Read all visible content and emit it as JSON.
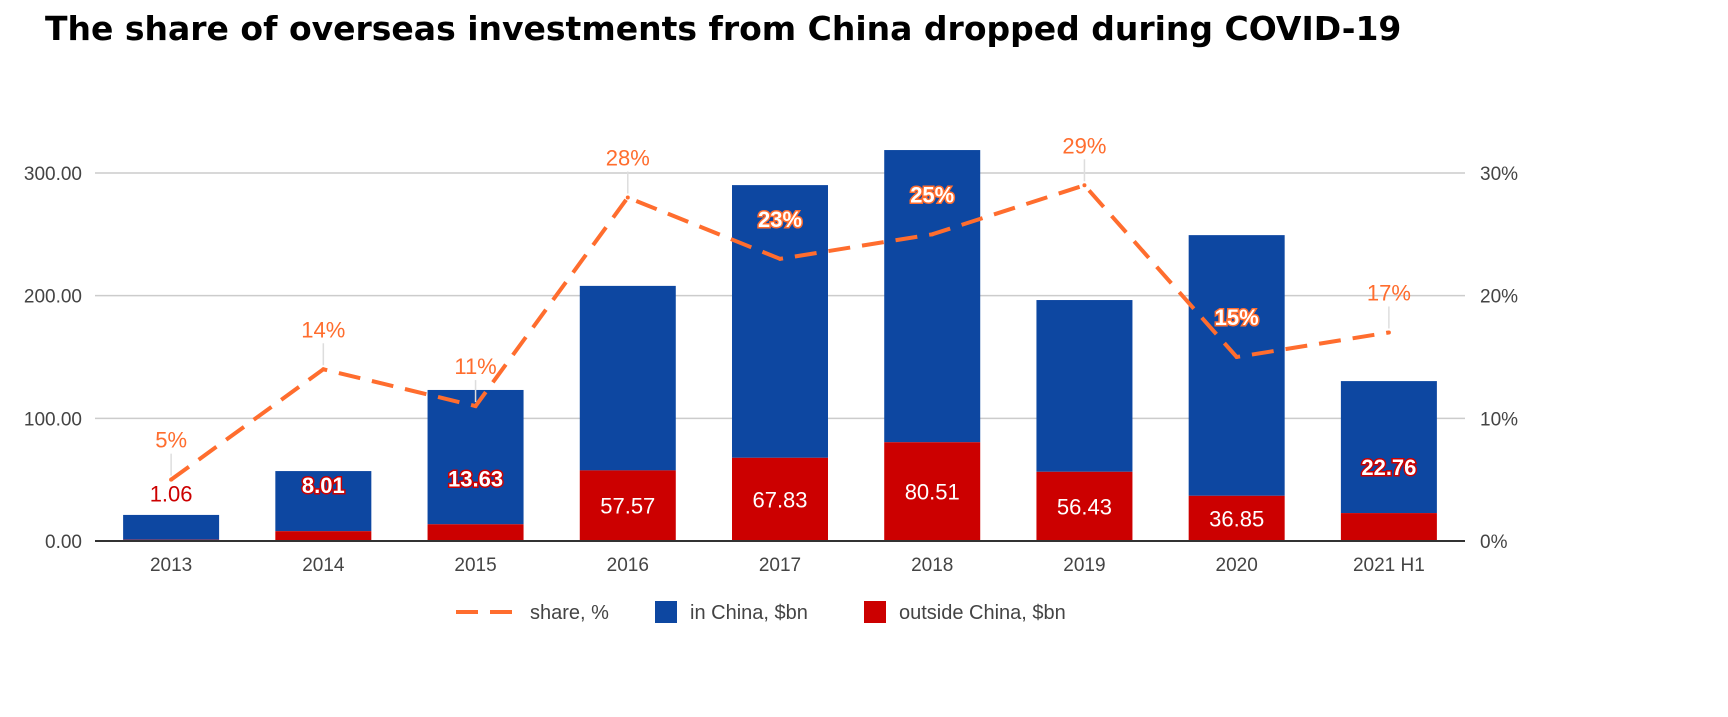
{
  "chart_data": {
    "type": "bar",
    "title": "The share of overseas investments from China dropped during COVID-19",
    "categories": [
      "2013",
      "2014",
      "2015",
      "2016",
      "2017",
      "2018",
      "2019",
      "2020",
      "2021 H1"
    ],
    "series": [
      {
        "name": "outside China, $bn",
        "kind": "bar",
        "axis": "left",
        "color": "#cc0000",
        "values": [
          1.06,
          8.01,
          13.63,
          57.57,
          67.83,
          80.51,
          56.43,
          36.85,
          22.76
        ],
        "labels": [
          "1.06",
          "8.01",
          "13.63",
          "57.57",
          "67.83",
          "80.51",
          "56.43",
          "36.85",
          "22.76"
        ]
      },
      {
        "name": "in China, $bn",
        "kind": "bar",
        "axis": "left",
        "color": "#0d47a1",
        "values": [
          20.2,
          49.0,
          109.5,
          150.4,
          222.3,
          238.2,
          140.0,
          212.5,
          107.6
        ]
      },
      {
        "name": "share, %",
        "kind": "line",
        "style": "dashed",
        "axis": "right",
        "color": "#ff6d2e",
        "values": [
          5,
          14,
          11,
          28,
          23,
          25,
          29,
          15,
          17
        ],
        "labels": [
          "5%",
          "14%",
          "11%",
          "28%",
          "23%",
          "25%",
          "29%",
          "15%",
          "17%"
        ]
      }
    ],
    "y_left": {
      "ticks": [
        "0.00",
        "100.00",
        "200.00",
        "300.00"
      ],
      "ylim": [
        0,
        300
      ]
    },
    "y_right": {
      "ticks": [
        "0%",
        "10%",
        "20%",
        "30%"
      ],
      "ylim": [
        0,
        30
      ]
    },
    "stacked": true,
    "grid": true,
    "legend_placement": "bottom",
    "legend": [
      "share, %",
      "in China, $bn",
      "outside China, $bn"
    ],
    "xlabel": "",
    "ylabel": ""
  }
}
